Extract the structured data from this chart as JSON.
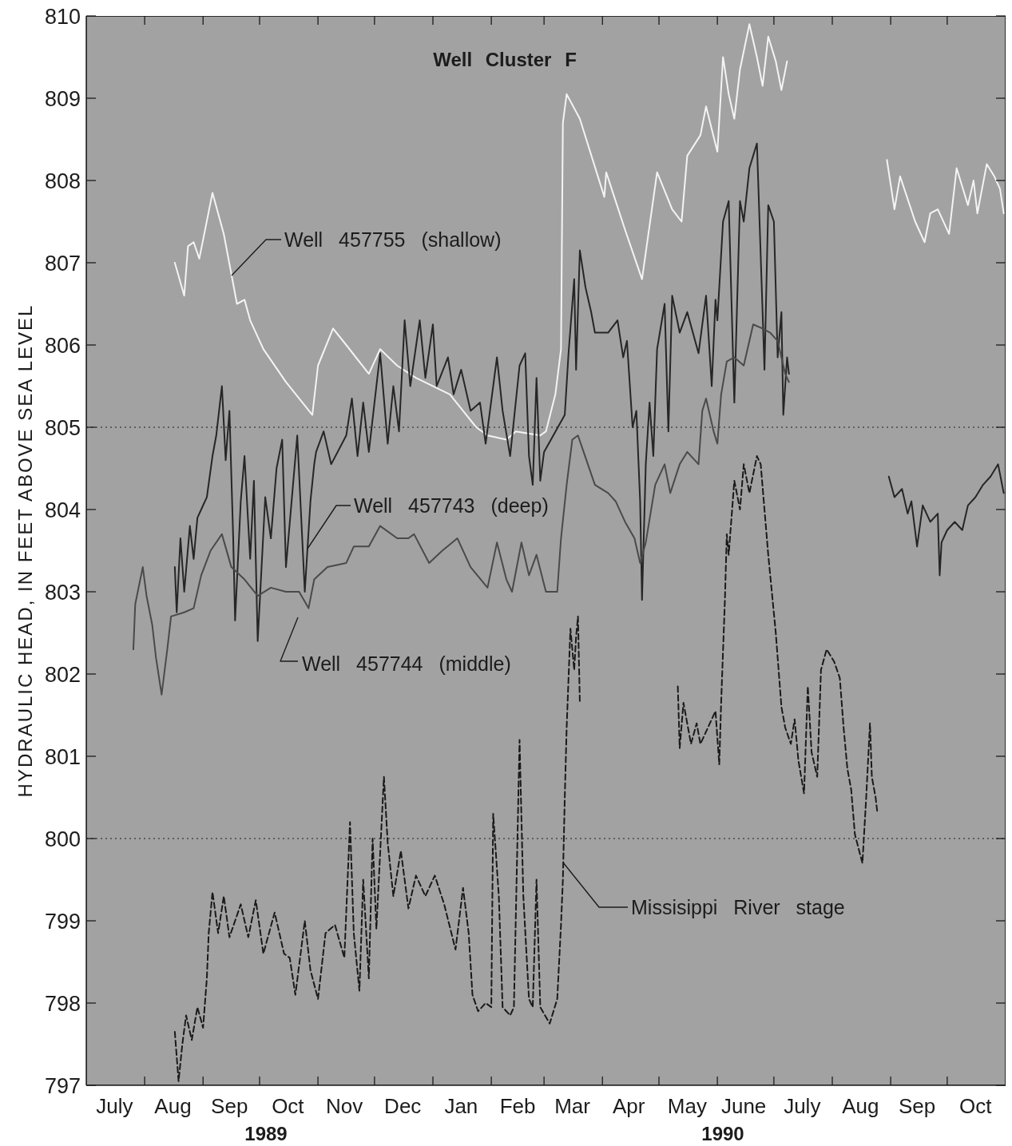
{
  "chart_data": {
    "type": "line",
    "title": "Well Cluster F",
    "ylabel": "HYDRAULIC HEAD, IN FEET ABOVE SEA LEVEL",
    "annotations": [
      "1989",
      "1990"
    ],
    "xlim": [
      "1989-07-01",
      "1990-11-01"
    ],
    "xticks": [
      {
        "value": "1989-07-16",
        "label": "July"
      },
      {
        "value": "1989-08-01",
        "label": null
      },
      {
        "value": "1989-08-16",
        "label": "Aug"
      },
      {
        "value": "1989-09-01",
        "label": null
      },
      {
        "value": "1989-09-15",
        "label": "Sep"
      },
      {
        "value": "1989-10-01",
        "label": null
      },
      {
        "value": "1989-10-16",
        "label": "Oct"
      },
      {
        "value": "1989-11-01",
        "label": null
      },
      {
        "value": "1989-11-15",
        "label": "Nov"
      },
      {
        "value": "1989-12-01",
        "label": null
      },
      {
        "value": "1989-12-16",
        "label": "Dec"
      },
      {
        "value": "1990-01-01",
        "label": null
      },
      {
        "value": "1990-01-16",
        "label": "Jan"
      },
      {
        "value": "1990-02-01",
        "label": null
      },
      {
        "value": "1990-02-15",
        "label": "Feb"
      },
      {
        "value": "1990-03-01",
        "label": null
      },
      {
        "value": "1990-03-16",
        "label": "Mar"
      },
      {
        "value": "1990-04-01",
        "label": null
      },
      {
        "value": "1990-04-15",
        "label": "Apr"
      },
      {
        "value": "1990-05-01",
        "label": null
      },
      {
        "value": "1990-05-16",
        "label": "May"
      },
      {
        "value": "1990-06-01",
        "label": null
      },
      {
        "value": "1990-06-15",
        "label": "June"
      },
      {
        "value": "1990-07-01",
        "label": null
      },
      {
        "value": "1990-07-16",
        "label": "July"
      },
      {
        "value": "1990-08-01",
        "label": null
      },
      {
        "value": "1990-08-16",
        "label": "Aug"
      },
      {
        "value": "1990-09-01",
        "label": null
      },
      {
        "value": "1990-09-15",
        "label": "Sep"
      },
      {
        "value": "1990-10-01",
        "label": null
      },
      {
        "value": "1990-10-16",
        "label": "Oct"
      }
    ],
    "ylim": [
      797,
      810
    ],
    "yticks": [
      797,
      798,
      799,
      800,
      801,
      802,
      803,
      804,
      805,
      806,
      807,
      808,
      809,
      810
    ],
    "ref_lines": [
      {
        "axis": "y",
        "value": 805,
        "line_style": "dotted",
        "color": "#4a4a4a"
      },
      {
        "axis": "y",
        "value": 800,
        "line_style": "dotted",
        "color": "#4a4a4a"
      }
    ],
    "series": [
      {
        "name": "Well 457755 (shallow)",
        "color": "#f4f4f4",
        "x": [
          "1989-08-17",
          "1989-08-22",
          "1989-08-24",
          "1989-08-27",
          "1989-08-30",
          "1989-09-06",
          "1989-09-12",
          "1989-09-19",
          "1989-09-23",
          "1989-09-26",
          "1989-10-03",
          "1989-10-15",
          "1989-10-29",
          "1989-11-01",
          "1989-11-09",
          "1989-11-16",
          "1989-11-28",
          "1989-12-04",
          "1989-12-13",
          "1989-12-23",
          "1990-01-10",
          "1990-01-24",
          "1990-01-30",
          "1990-02-09",
          "1990-02-14",
          "1990-02-27",
          "1990-03-02",
          "1990-03-07",
          "1990-03-10",
          "1990-03-11",
          "1990-03-13",
          "1990-03-20",
          "1990-04-02",
          "1990-04-03",
          "1990-04-13",
          "1990-04-22",
          "1990-04-30",
          "1990-05-08",
          "1990-05-13",
          "1990-05-16",
          "1990-05-23",
          "1990-05-26",
          "1990-06-01",
          "1990-06-04",
          "1990-06-07",
          "1990-06-10",
          "1990-06-13",
          "1990-06-18",
          "1990-06-22",
          "1990-06-25",
          "1990-06-28",
          "1990-07-02",
          "1990-07-05",
          "1990-07-08",
          "1990-08-01",
          "1990-08-30",
          "1990-09-03",
          "1990-09-06",
          "1990-09-14",
          "1990-09-19",
          "1990-09-22",
          "1990-09-26",
          "1990-10-02",
          "1990-10-06",
          "1990-10-12",
          "1990-10-15",
          "1990-10-17",
          "1990-10-22",
          "1990-10-26",
          "1990-10-29",
          "1990-10-31"
        ],
        "values": [
          807.0,
          806.6,
          807.2,
          807.25,
          807.05,
          807.85,
          807.35,
          806.5,
          806.55,
          806.3,
          805.95,
          805.55,
          805.15,
          805.75,
          806.2,
          806.0,
          805.65,
          805.95,
          805.75,
          805.6,
          805.4,
          805.0,
          804.9,
          804.85,
          804.95,
          804.9,
          804.95,
          805.4,
          805.95,
          808.7,
          809.05,
          808.75,
          807.8,
          808.1,
          807.4,
          806.8,
          808.1,
          807.65,
          807.5,
          808.3,
          808.55,
          808.9,
          808.35,
          809.5,
          809.05,
          808.75,
          809.35,
          809.9,
          809.5,
          809.15,
          809.75,
          809.45,
          809.1,
          809.45,
          null,
          808.25,
          807.65,
          808.05,
          807.5,
          807.25,
          807.6,
          807.65,
          807.35,
          808.15,
          807.7,
          808.0,
          807.6,
          808.2,
          808.05,
          807.9,
          807.6
        ]
      },
      {
        "name": "Well 457743 (deep)",
        "color": "#262626",
        "x": [
          "1989-08-17",
          "1989-08-18",
          "1989-08-20",
          "1989-08-22",
          "1989-08-25",
          "1989-08-27",
          "1989-08-29",
          "1989-09-03",
          "1989-09-06",
          "1989-09-08",
          "1989-09-11",
          "1989-09-13",
          "1989-09-15",
          "1989-09-17",
          "1989-09-18",
          "1989-09-21",
          "1989-09-23",
          "1989-09-26",
          "1989-09-28",
          "1989-09-30",
          "1989-10-04",
          "1989-10-07",
          "1989-10-10",
          "1989-10-13",
          "1989-10-15",
          "1989-10-18",
          "1989-10-21",
          "1989-10-25",
          "1989-10-28",
          "1989-10-30",
          "1989-10-31",
          "1989-11-04",
          "1989-11-08",
          "1989-11-16",
          "1989-11-19",
          "1989-11-22",
          "1989-11-25",
          "1989-11-28",
          "1989-12-04",
          "1989-12-08",
          "1989-12-11",
          "1989-12-14",
          "1989-12-17",
          "1989-12-20",
          "1989-12-25",
          "1989-12-28",
          "1990-01-01",
          "1990-01-03",
          "1990-01-09",
          "1990-01-12",
          "1990-01-16",
          "1990-01-21",
          "1990-01-26",
          "1990-01-29",
          "1990-02-04",
          "1990-02-07",
          "1990-02-11",
          "1990-02-16",
          "1990-02-19",
          "1990-02-21",
          "1990-02-23",
          "1990-02-25",
          "1990-02-27",
          "1990-03-01",
          "1990-03-12",
          "1990-03-14",
          "1990-03-17",
          "1990-03-18",
          "1990-03-20",
          "1990-03-23",
          "1990-03-26",
          "1990-03-28",
          "1990-04-04",
          "1990-04-09",
          "1990-04-12",
          "1990-04-14",
          "1990-04-17",
          "1990-04-19",
          "1990-04-21",
          "1990-04-22",
          "1990-04-24",
          "1990-04-26",
          "1990-04-28",
          "1990-04-30",
          "1990-05-04",
          "1990-05-06",
          "1990-05-08",
          "1990-05-12",
          "1990-05-16",
          "1990-05-22",
          "1990-05-26",
          "1990-05-29",
          "1990-05-31",
          "1990-06-01",
          "1990-06-04",
          "1990-06-07",
          "1990-06-10",
          "1990-06-13",
          "1990-06-15",
          "1990-06-18",
          "1990-06-22",
          "1990-06-25",
          "1990-06-26",
          "1990-06-28",
          "1990-07-01",
          "1990-07-03",
          "1990-07-05",
          "1990-07-06",
          "1990-07-08",
          "1990-07-09",
          "1990-08-01",
          "1990-08-31",
          "1990-09-03",
          "1990-09-07",
          "1990-09-10",
          "1990-09-12",
          "1990-09-15",
          "1990-09-18",
          "1990-09-22",
          "1990-09-26",
          "1990-09-27",
          "1990-09-28",
          "1990-10-01",
          "1990-10-05",
          "1990-10-09",
          "1990-10-12",
          "1990-10-16",
          "1990-10-20",
          "1990-10-24",
          "1990-10-28",
          "1990-10-31"
        ],
        "values": [
          803.3,
          802.75,
          803.65,
          803.0,
          803.8,
          803.4,
          803.9,
          804.15,
          804.65,
          804.9,
          805.5,
          804.6,
          805.2,
          803.65,
          802.65,
          804.1,
          804.65,
          803.4,
          804.35,
          802.4,
          804.15,
          803.65,
          804.5,
          804.85,
          803.3,
          804.1,
          804.9,
          803.0,
          804.1,
          804.55,
          804.7,
          804.95,
          804.55,
          804.9,
          805.35,
          804.65,
          805.3,
          804.7,
          805.9,
          804.8,
          805.5,
          804.95,
          806.3,
          805.5,
          806.3,
          805.6,
          806.25,
          805.5,
          805.85,
          805.4,
          805.7,
          805.2,
          805.3,
          804.8,
          805.85,
          805.2,
          804.65,
          805.75,
          805.9,
          804.65,
          804.3,
          805.6,
          804.35,
          804.7,
          805.15,
          805.9,
          806.8,
          805.7,
          807.15,
          806.7,
          806.4,
          806.15,
          806.15,
          806.3,
          805.85,
          806.05,
          805.0,
          805.2,
          804.1,
          802.9,
          804.55,
          805.3,
          804.65,
          805.95,
          806.5,
          804.95,
          806.6,
          806.15,
          806.4,
          805.9,
          806.6,
          805.5,
          806.55,
          806.3,
          807.5,
          807.75,
          805.3,
          807.75,
          807.5,
          808.15,
          808.45,
          806.4,
          805.7,
          807.7,
          807.5,
          805.85,
          806.4,
          805.15,
          805.85,
          805.65,
          null,
          804.4,
          804.15,
          804.25,
          803.95,
          804.1,
          803.55,
          804.05,
          803.85,
          803.95,
          803.2,
          803.6,
          803.75,
          803.85,
          803.75,
          804.05,
          804.15,
          804.3,
          804.4,
          804.55,
          804.2
        ]
      },
      {
        "name": "Well 457744 (middle)",
        "color": "#4a4a4a",
        "x": [
          "1989-07-26",
          "1989-07-27",
          "1989-07-31",
          "1989-08-02",
          "1989-08-05",
          "1989-08-07",
          "1989-08-10",
          "1989-08-13",
          "1989-08-15",
          "1989-08-22",
          "1989-08-27",
          "1989-08-31",
          "1989-09-05",
          "1989-09-11",
          "1989-09-16",
          "1989-09-23",
          "1989-09-30",
          "1989-10-07",
          "1989-10-15",
          "1989-10-22",
          "1989-10-27",
          "1989-10-30",
          "1989-11-06",
          "1989-11-16",
          "1989-11-20",
          "1989-11-28",
          "1989-12-04",
          "1989-12-13",
          "1989-12-19",
          "1989-12-22",
          "1989-12-30",
          "1990-01-06",
          "1990-01-14",
          "1990-01-21",
          "1990-01-30",
          "1990-02-04",
          "1990-02-09",
          "1990-02-12",
          "1990-02-17",
          "1990-02-21",
          "1990-02-25",
          "1990-03-02",
          "1990-03-08",
          "1990-03-10",
          "1990-03-13",
          "1990-03-16",
          "1990-03-19",
          "1990-03-22",
          "1990-03-28",
          "1990-04-04",
          "1990-04-08",
          "1990-04-13",
          "1990-04-18",
          "1990-04-21",
          "1990-04-24",
          "1990-04-29",
          "1990-05-04",
          "1990-05-07",
          "1990-05-12",
          "1990-05-16",
          "1990-05-22",
          "1990-05-24",
          "1990-05-26",
          "1990-05-30",
          "1990-06-01",
          "1990-06-03",
          "1990-06-06",
          "1990-06-10",
          "1990-06-15",
          "1990-06-20",
          "1990-06-25",
          "1990-06-29",
          "1990-07-03",
          "1990-07-07",
          "1990-07-09"
        ],
        "values": [
          802.3,
          802.85,
          803.3,
          802.95,
          802.6,
          802.2,
          801.75,
          802.3,
          802.7,
          802.75,
          802.8,
          803.2,
          803.5,
          803.7,
          803.3,
          803.15,
          802.95,
          803.05,
          803.0,
          803.0,
          802.8,
          803.15,
          803.3,
          803.35,
          803.55,
          803.55,
          803.8,
          803.65,
          803.65,
          803.7,
          803.35,
          803.5,
          803.65,
          803.3,
          803.05,
          803.6,
          803.15,
          803.0,
          803.6,
          803.2,
          803.45,
          803.0,
          803.0,
          803.65,
          804.3,
          804.85,
          804.9,
          804.7,
          804.3,
          804.2,
          804.1,
          803.85,
          803.65,
          803.35,
          803.6,
          804.3,
          804.55,
          804.2,
          804.55,
          804.7,
          804.55,
          805.2,
          805.35,
          804.95,
          804.8,
          805.4,
          805.8,
          805.85,
          805.75,
          806.25,
          806.2,
          806.15,
          806.05,
          805.65,
          805.55
        ]
      },
      {
        "name": "Missisippi River stage",
        "color": "#1a1a1a",
        "line_style": "dashed",
        "x": [
          "1989-08-17",
          "1989-08-19",
          "1989-08-21",
          "1989-08-23",
          "1989-08-26",
          "1989-08-29",
          "1989-09-01",
          "1989-09-03",
          "1989-09-04",
          "1989-09-06",
          "1989-09-09",
          "1989-09-12",
          "1989-09-15",
          "1989-09-21",
          "1989-09-25",
          "1989-09-29",
          "1989-10-03",
          "1989-10-09",
          "1989-10-14",
          "1989-10-17",
          "1989-10-20",
          "1989-10-25",
          "1989-10-28",
          "1989-11-01",
          "1989-11-05",
          "1989-11-10",
          "1989-11-15",
          "1989-11-18",
          "1989-11-20",
          "1989-11-23",
          "1989-11-25",
          "1989-11-28",
          "1989-11-30",
          "1989-12-02",
          "1989-12-06",
          "1989-12-08",
          "1989-12-11",
          "1989-12-15",
          "1989-12-19",
          "1989-12-23",
          "1989-12-28",
          "1990-01-02",
          "1990-01-07",
          "1990-01-13",
          "1990-01-17",
          "1990-01-20",
          "1990-01-22",
          "1990-01-25",
          "1990-01-29",
          "1990-02-01",
          "1990-02-02",
          "1990-02-05",
          "1990-02-07",
          "1990-02-11",
          "1990-02-13",
          "1990-02-16",
          "1990-02-18",
          "1990-02-21",
          "1990-02-23",
          "1990-02-25",
          "1990-02-27",
          "1990-03-04",
          "1990-03-08",
          "1990-03-10",
          "1990-03-11",
          "1990-03-12",
          "1990-03-13",
          "1990-03-15",
          "1990-03-17",
          "1990-03-18",
          "1990-03-19",
          "1990-03-20",
          "1990-04-15",
          "1990-05-11",
          "1990-05-12",
          "1990-05-14",
          "1990-05-18",
          "1990-05-21",
          "1990-05-23",
          "1990-05-27",
          "1990-05-31",
          "1990-06-02",
          "1990-06-03",
          "1990-06-05",
          "1990-06-06",
          "1990-06-07",
          "1990-06-10",
          "1990-06-13",
          "1990-06-15",
          "1990-06-18",
          "1990-06-22",
          "1990-06-24",
          "1990-06-26",
          "1990-06-28",
          "1990-07-02",
          "1990-07-05",
          "1990-07-07",
          "1990-07-10",
          "1990-07-12",
          "1990-07-14",
          "1990-07-17",
          "1990-07-19",
          "1990-07-21",
          "1990-07-24",
          "1990-07-26",
          "1990-07-29",
          "1990-08-02",
          "1990-08-05",
          "1990-08-07",
          "1990-08-09",
          "1990-08-11",
          "1990-08-13",
          "1990-08-17",
          "1990-08-19",
          "1990-08-21",
          "1990-08-22",
          "1990-08-24",
          "1990-08-25"
        ],
        "values": [
          797.65,
          797.05,
          797.5,
          797.85,
          797.55,
          797.95,
          797.7,
          798.3,
          798.85,
          799.35,
          798.85,
          799.3,
          798.8,
          799.2,
          798.8,
          799.25,
          798.6,
          799.1,
          798.6,
          798.55,
          798.1,
          799.0,
          798.4,
          798.05,
          798.85,
          798.95,
          798.55,
          800.2,
          798.85,
          798.15,
          799.5,
          798.3,
          800.0,
          798.9,
          800.75,
          799.95,
          799.3,
          799.85,
          799.15,
          799.55,
          799.3,
          799.55,
          799.2,
          798.65,
          799.4,
          798.85,
          798.1,
          797.9,
          798.0,
          797.95,
          800.3,
          799.3,
          797.95,
          797.85,
          797.95,
          801.2,
          799.3,
          798.05,
          797.95,
          799.5,
          797.95,
          797.75,
          798.05,
          798.95,
          799.5,
          800.5,
          801.35,
          802.55,
          802.05,
          802.45,
          802.7,
          801.65,
          null,
          801.85,
          801.1,
          801.65,
          801.15,
          801.4,
          801.15,
          801.35,
          801.55,
          800.9,
          801.65,
          802.9,
          803.7,
          803.45,
          804.35,
          804.0,
          804.55,
          804.2,
          804.65,
          804.55,
          804.0,
          803.45,
          802.5,
          801.6,
          801.35,
          801.15,
          801.45,
          800.95,
          800.55,
          801.85,
          801.05,
          800.75,
          802.05,
          802.3,
          802.15,
          801.95,
          801.35,
          800.85,
          800.6,
          800.05,
          799.7,
          800.5,
          801.4,
          800.75,
          800.5,
          800.3
        ]
      }
    ]
  }
}
